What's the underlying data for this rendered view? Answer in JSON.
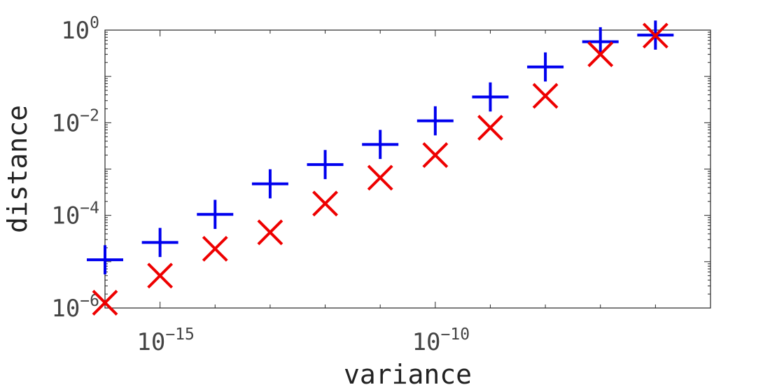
{
  "chart_data": {
    "type": "scatter",
    "title": "",
    "xlabel": "variance",
    "ylabel": "distance",
    "xscale": "log",
    "yscale": "log",
    "xlim": [
      1e-16,
      1e-05
    ],
    "ylim": [
      1e-06,
      1
    ],
    "grid": false,
    "x_ticks": [
      {
        "value": 1e-15,
        "base": "10",
        "exp": "−15"
      },
      {
        "value": 1e-10,
        "base": "10",
        "exp": "−10"
      }
    ],
    "y_ticks": [
      {
        "value": 1e-06,
        "base": "10",
        "exp": "−6"
      },
      {
        "value": 0.0001,
        "base": "10",
        "exp": "−4"
      },
      {
        "value": 0.01,
        "base": "10",
        "exp": "−2"
      },
      {
        "value": 1,
        "base": "10",
        "exp": "0"
      }
    ],
    "series": [
      {
        "marker": "plus",
        "color": "#0000ee",
        "points": [
          [
            1e-16,
            1.1e-05
          ],
          [
            1e-15,
            2.6e-05
          ],
          [
            1e-14,
            0.000105
          ],
          [
            1e-13,
            0.00048
          ],
          [
            1e-12,
            0.00125
          ],
          [
            1e-11,
            0.0034
          ],
          [
            1e-10,
            0.011
          ],
          [
            1e-09,
            0.036
          ],
          [
            1e-08,
            0.16
          ],
          [
            1e-07,
            0.56
          ],
          [
            1e-06,
            0.78
          ]
        ]
      },
      {
        "marker": "x",
        "color": "#ee0000",
        "points": [
          [
            1e-16,
            1.3e-06
          ],
          [
            1e-15,
            5e-06
          ],
          [
            1e-14,
            1.9e-05
          ],
          [
            1e-13,
            4.3e-05
          ],
          [
            1e-12,
            0.00018
          ],
          [
            1e-11,
            0.00065
          ],
          [
            1e-10,
            0.002
          ],
          [
            1e-09,
            0.0078
          ],
          [
            1e-08,
            0.038
          ],
          [
            1e-07,
            0.3
          ],
          [
            1e-06,
            0.76
          ]
        ]
      }
    ]
  }
}
